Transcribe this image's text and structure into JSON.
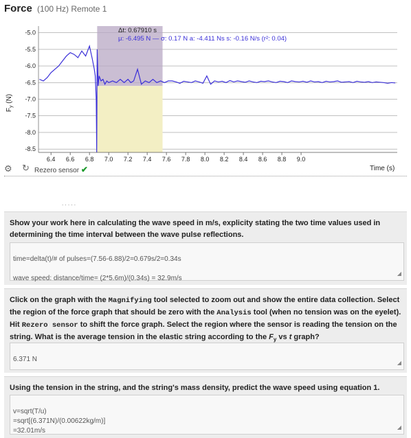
{
  "graph": {
    "title": "Force",
    "subtitle": "(100 Hz) Remote 1",
    "y_axis_label": "F",
    "y_axis_sub": "y",
    "y_axis_unit": "(N)",
    "x_axis_label": "Time (s)",
    "delta_t": "Δt: 0.67910 s",
    "stats": "μ: -6.495 N — σ: 0.17 N  a: -4.411 Ns  s: -0.16 N/s (r²: 0.04)",
    "rezero_label": "Rezero sensor",
    "rezero_check": "✔",
    "colors": {
      "line": "#3a2fd8",
      "selection": "#b8a8c4",
      "area": "#f3efc4",
      "grid": "#9a9a9a"
    }
  },
  "chart_data": {
    "type": "line",
    "xlim": [
      6.27,
      10.0
    ],
    "ylim": [
      -8.6,
      -4.8
    ],
    "x_ticks": [
      "6.4",
      "6.6",
      "6.8",
      "7.0",
      "7.2",
      "7.4",
      "7.6",
      "7.8",
      "8.0",
      "8.2",
      "8.4",
      "8.6",
      "8.8",
      "9.0"
    ],
    "y_ticks": [
      "-5.0",
      "-5.5",
      "-6.0",
      "-6.5",
      "-7.0",
      "-7.5",
      "-8.0",
      "-8.5"
    ],
    "selection": {
      "x_start": 6.88,
      "x_end": 7.56
    },
    "series": [
      {
        "x": [
          6.28,
          6.32,
          6.36,
          6.4,
          6.44,
          6.48,
          6.52,
          6.56,
          6.6,
          6.64,
          6.68,
          6.72,
          6.76,
          6.8,
          6.83,
          6.85,
          6.86,
          6.87,
          6.875,
          6.88,
          6.89,
          6.9,
          6.92,
          6.94,
          6.96,
          6.98,
          7.0,
          7.04,
          7.08,
          7.12,
          7.16,
          7.2,
          7.23,
          7.26,
          7.3,
          7.34,
          7.38,
          7.42,
          7.46,
          7.5,
          7.54,
          7.58,
          7.62,
          7.66,
          7.7,
          7.74,
          7.78,
          7.82,
          7.86,
          7.9,
          7.94,
          7.98,
          8.02,
          8.06,
          8.1,
          8.14,
          8.18,
          8.22,
          8.26,
          8.3,
          8.34,
          8.38,
          8.42,
          8.46,
          8.5,
          8.54,
          8.58,
          8.62,
          8.66,
          8.7,
          8.74,
          8.78,
          8.82,
          8.86,
          8.9,
          8.94,
          8.98,
          9.02,
          9.06,
          9.1,
          9.14,
          9.18,
          9.22,
          9.26,
          9.3,
          9.34,
          9.38,
          9.42,
          9.46,
          9.5,
          9.54,
          9.58,
          9.62,
          9.66,
          9.7,
          9.74,
          9.78,
          9.82,
          9.86,
          9.9,
          9.94,
          9.98
        ],
        "y": [
          -6.4,
          -6.45,
          -6.35,
          -6.2,
          -6.1,
          -6.0,
          -5.85,
          -5.7,
          -5.6,
          -5.65,
          -5.75,
          -5.55,
          -5.7,
          -5.4,
          -5.8,
          -6.1,
          -6.3,
          -7.0,
          -8.6,
          -5.5,
          -6.6,
          -6.3,
          -6.45,
          -6.4,
          -6.55,
          -6.45,
          -6.5,
          -6.45,
          -6.5,
          -6.4,
          -6.5,
          -6.4,
          -6.5,
          -6.45,
          -6.1,
          -6.55,
          -6.45,
          -6.5,
          -6.4,
          -6.5,
          -6.45,
          -6.5,
          -6.45,
          -6.45,
          -6.48,
          -6.52,
          -6.46,
          -6.48,
          -6.5,
          -6.45,
          -6.48,
          -6.52,
          -6.3,
          -6.55,
          -6.45,
          -6.48,
          -6.46,
          -6.5,
          -6.44,
          -6.48,
          -6.45,
          -6.47,
          -6.49,
          -6.45,
          -6.48,
          -6.5,
          -6.46,
          -6.47,
          -6.45,
          -6.48,
          -6.5,
          -6.46,
          -6.47,
          -6.5,
          -6.45,
          -6.47,
          -6.48,
          -6.46,
          -6.49,
          -6.45,
          -6.48,
          -6.47,
          -6.5,
          -6.46,
          -6.48,
          -6.47,
          -6.45,
          -6.49,
          -6.48,
          -6.47,
          -6.5,
          -6.46,
          -6.48,
          -6.49,
          -6.47,
          -6.5,
          -6.48,
          -6.49,
          -6.5,
          -6.52,
          -6.5,
          -6.51
        ]
      }
    ]
  },
  "cut_dots": ".       .       .   .   .",
  "questions": [
    {
      "text_html": "Show your work here in calculating the wave speed in m/s, explicity stating the two time values used in determining the time interval between the wave pulse reflections.",
      "answer": "time=delta(t)/# of pulses=(7.56-6.88)/2=0.679s/2=0.34s\n\nwave speed: distance/time= (2*5.6m)/(0.34s) = 32.9m/s"
    },
    {
      "t1": "Click on the graph with the ",
      "m1": "Magnifying",
      "t2": " tool selected to zoom out and show the entire data collection. Select the region of the force graph that should be zero with the ",
      "m2": "Analysis",
      "t3": " tool (when no tension was on the eyelet). Hit ",
      "m3": "Rezero sensor",
      "t4": " to shift the force graph. Select the region where the sensor is reading the tension on the string. What is the average tension in the elastic string according to the ",
      "i1": "F",
      "s1": "y",
      "t5": " vs ",
      "i2": "t",
      "t6": " graph?",
      "answer": "6.371 N"
    },
    {
      "text_html": "Using the tension in the string, and the string's mass density, predict the wave speed using equation 1.",
      "answer": "v=sqrt(T/u)\n=sqrt[(6.371N)/(0.00622kg/m)]\n=32.01m/s"
    }
  ]
}
